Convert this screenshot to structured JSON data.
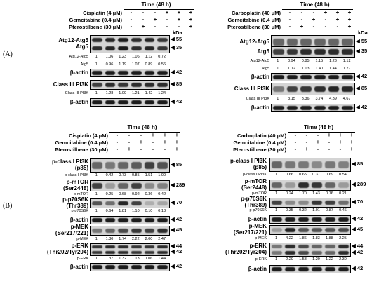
{
  "section_labels": {
    "A": "(A)",
    "B": "(B)"
  },
  "panels": {
    "tl": {
      "time": "Time (48 h)",
      "treatments": [
        "Cisplatin (4 μM)",
        "Gemcitabine (0.4 μM)",
        "Pterostilbene (30 μM)"
      ],
      "signs": [
        [
          "-",
          "-",
          "-",
          "+",
          "+",
          "+"
        ],
        [
          "-",
          "-",
          "+",
          "-",
          "+",
          "+"
        ],
        [
          "-",
          "+",
          "-",
          "-",
          "-",
          "+"
        ]
      ],
      "kda": "kDa",
      "blots": [
        {
          "label": "Atg12-Atg5\nAtg5",
          "mw": [
            "55",
            "35"
          ],
          "bands": [
            0.9,
            0.95,
            1.0,
            0.9,
            0.95,
            0.85
          ]
        },
        {
          "label": "β-actin",
          "mw": [
            "42"
          ],
          "bands": [
            1,
            1,
            1,
            1,
            1,
            1
          ]
        },
        {
          "label": "Class III PI3K",
          "mw": [
            "85"
          ],
          "bands": [
            0.8,
            0.9,
            0.85,
            0.9,
            0.9,
            0.9
          ]
        },
        {
          "label": "β-actin",
          "mw": [
            "42"
          ],
          "bands": [
            1,
            1,
            1,
            1,
            1,
            1
          ]
        }
      ],
      "quant": [
        {
          "label": "Atg12-Atg5",
          "values": [
            "1",
            "1.06",
            "1.23",
            "1.06",
            "1.12",
            "0.72"
          ]
        },
        {
          "label": "Atg5",
          "values": [
            "1",
            "0.96",
            "1.19",
            "1.07",
            "0.89",
            "0.56"
          ]
        },
        {
          "label": "Class III PI3K",
          "values": [
            "1",
            "1.28",
            "1.09",
            "1.21",
            "1.42",
            "1.24"
          ]
        }
      ]
    },
    "tr": {
      "time": "Time (48 h)",
      "treatments": [
        "Carboplatin (40 μM)",
        "Gemcitabine (0.4 μM)",
        "Pterostilbene (30 μM)"
      ],
      "signs": [
        [
          "-",
          "-",
          "-",
          "+",
          "+",
          "+"
        ],
        [
          "-",
          "-",
          "+",
          "-",
          "+",
          "+"
        ],
        [
          "-",
          "+",
          "-",
          "-",
          "-",
          "+"
        ]
      ],
      "kda": "kDa",
      "blots": [
        {
          "label": "Atg12-Atg5",
          "mw": [
            "55"
          ],
          "bands": [
            0.6,
            0.6,
            0.6,
            0.6,
            0.6,
            0.6
          ]
        },
        {
          "label": "Atg5",
          "mw": [
            "35"
          ],
          "bands": [
            0.8,
            0.85,
            0.9,
            0.9,
            0.9,
            0.9
          ]
        },
        {
          "label": "β-actin",
          "mw": [
            "42"
          ],
          "bands": [
            1,
            1,
            1,
            1,
            1,
            1
          ]
        },
        {
          "label": "Class III PI3K",
          "mw": [
            "85"
          ],
          "bands": [
            0.5,
            0.8,
            0.85,
            0.9,
            0.95,
            0.95
          ]
        },
        {
          "label": "β-actin",
          "mw": [
            "42"
          ],
          "bands": [
            1,
            1,
            1,
            1,
            1,
            1
          ]
        }
      ],
      "quant": [
        {
          "label": "Atg12-Atg5",
          "values": [
            "1",
            "0.94",
            "0.85",
            "1.15",
            "1.23",
            "1.12"
          ]
        },
        {
          "label": "Atg5",
          "values": [
            "1",
            "1.12",
            "1.13",
            "1.40",
            "1.44",
            "1.27"
          ]
        },
        {
          "label": "Class III PI3K",
          "values": [
            "1",
            "3.15",
            "3.36",
            "3.74",
            "4.39",
            "4.67"
          ]
        }
      ]
    },
    "bl": {
      "time": "Time (48 h)",
      "treatments": [
        "Cisplatin (4 μM)",
        "Gemcitabine (0.4 μM)",
        "Pterostilbene (30 μM)"
      ],
      "signs": [
        [
          "-",
          "-",
          "-",
          "+",
          "+",
          "+"
        ],
        [
          "-",
          "-",
          "+",
          "-",
          "+",
          "+"
        ],
        [
          "-",
          "+",
          "-",
          "-",
          "-",
          "+"
        ]
      ],
      "blots": [
        {
          "label": "p-class I PI3K\n(p85)",
          "mw": [
            "85"
          ],
          "quant_label": "p-class I PI3K",
          "values": [
            "1",
            "0.42",
            "0.73",
            "0.85",
            "1.51",
            "1.00"
          ],
          "bands": [
            0.6,
            0.5,
            0.6,
            0.65,
            0.8,
            0.7
          ]
        },
        {
          "label": "p-mTOR\n(Ser2448)",
          "mw": [
            "289"
          ],
          "quant_label": "p-mTOR",
          "values": [
            "1",
            "0.25",
            "0.68",
            "0.92",
            "0.36",
            "0.42"
          ],
          "bands": [
            0.8,
            0.3,
            0.6,
            0.8,
            0.4,
            0.45
          ]
        },
        {
          "label": "p-p70S6K\n(Thr389)",
          "mw": [
            "70"
          ],
          "quant_label": "p-p70S6K",
          "values": [
            "1",
            "0.64",
            "1.81",
            "1.10",
            "0.10",
            "0.18"
          ],
          "bands": [
            0.7,
            0.55,
            0.95,
            0.8,
            0.2,
            0.25
          ]
        },
        {
          "label": "β-actin",
          "mw": [
            "42"
          ],
          "bands": [
            1,
            1,
            1,
            1,
            1,
            1
          ]
        },
        {
          "label": "p-MEK\n(Ser217/221)",
          "mw": [
            "45"
          ],
          "quant_label": "p-MEK",
          "values": [
            "1",
            "1.30",
            "1.74",
            "2.22",
            "2.00",
            "2.47"
          ],
          "bands": [
            0.5,
            0.6,
            0.75,
            0.85,
            0.8,
            0.9
          ]
        },
        {
          "label": "p-ERK\n(Thr202/Tyr204)",
          "mw": [
            "44",
            "42"
          ],
          "quant_label": "p-ERK",
          "values": [
            "1",
            "1.37",
            "1.32",
            "1.13",
            "1.06",
            "1.44"
          ],
          "bands": [
            0.85,
            0.9,
            0.9,
            0.85,
            0.85,
            0.9
          ]
        },
        {
          "label": "β-actin",
          "mw": [
            "42"
          ],
          "bands": [
            1,
            1,
            1,
            1,
            1,
            1
          ]
        }
      ]
    },
    "br": {
      "time": "Time (48 h)",
      "treatments": [
        "Carboplatin (40 μM)",
        "Gemcitabine (0.4 μM)",
        "Pterostilbene (30 μM)"
      ],
      "signs": [
        [
          "-",
          "-",
          "-",
          "+",
          "+",
          "+"
        ],
        [
          "-",
          "-",
          "+",
          "-",
          "+",
          "+"
        ],
        [
          "-",
          "+",
          "-",
          "-",
          "-",
          "+"
        ]
      ],
      "blots": [
        {
          "label": "p-class I PI3K\n(p85)",
          "mw": [
            "85"
          ],
          "quant_label": "p-class I PI3K",
          "values": [
            "1",
            "0.66",
            "0.65",
            "0.37",
            "0.69",
            "0.54"
          ],
          "bands": [
            0.6,
            0.5,
            0.5,
            0.4,
            0.5,
            0.45
          ]
        },
        {
          "label": "p-mTOR\n(Ser2448)",
          "mw": [
            "289"
          ],
          "quant_label": "p-mTOR",
          "values": [
            "1",
            "0.24",
            "1.70",
            "1.43",
            "0.76",
            "0.21"
          ],
          "bands": [
            0.6,
            0.3,
            0.9,
            0.85,
            0.6,
            0.3
          ]
        },
        {
          "label": "p-p70S6K\n(Thr389)",
          "mw": [
            "70"
          ],
          "quant_label": "p-p70S6K",
          "values": [
            "1",
            "0.35",
            "0.32",
            "1.01",
            "0.87",
            "0.46"
          ],
          "bands": [
            0.8,
            0.4,
            0.4,
            0.85,
            0.8,
            0.55
          ]
        },
        {
          "label": "β-actin",
          "mw": [
            "42"
          ],
          "bands": [
            1,
            1,
            1,
            1,
            1,
            1
          ]
        },
        {
          "label": "p-MEK\n(Ser217/221)",
          "mw": [
            "45"
          ],
          "quant_label": "p-MEK",
          "values": [
            "1",
            "4.22",
            "1.86",
            "1.83",
            "1.88",
            "2.25"
          ],
          "bands": [
            0.3,
            0.95,
            0.7,
            0.7,
            0.7,
            0.75
          ]
        },
        {
          "label": "p-ERK\n(Thr202/Tyr204)",
          "mw": [
            "44",
            "42"
          ],
          "quant_label": "p-ERK",
          "values": [
            "1",
            "2.20",
            "1.58",
            "1.20",
            "1.22",
            "2.30"
          ],
          "bands": [
            0.5,
            0.9,
            0.75,
            0.6,
            0.6,
            0.9
          ]
        },
        {
          "label": "β-actin",
          "mw": [
            "42"
          ],
          "bands": [
            1,
            1,
            1,
            1,
            1,
            1
          ]
        }
      ]
    }
  }
}
